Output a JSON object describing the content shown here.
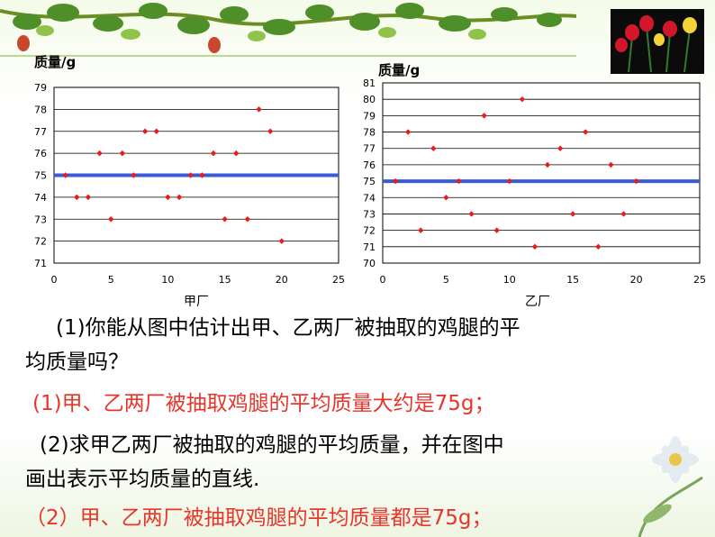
{
  "charts": [
    {
      "ylabel": "质量/g",
      "xlabel": "甲厂",
      "chart_data": {
        "type": "scatter",
        "xlim": [
          0,
          25
        ],
        "ylim": [
          71,
          79
        ],
        "xticks": [
          0,
          5,
          10,
          15,
          20,
          25
        ],
        "yticks": [
          71,
          72,
          73,
          74,
          75,
          76,
          77,
          78,
          79
        ],
        "grid": true,
        "mean_line": 75,
        "points": [
          [
            1,
            75
          ],
          [
            2,
            74
          ],
          [
            3,
            74
          ],
          [
            4,
            76
          ],
          [
            5,
            73
          ],
          [
            6,
            76
          ],
          [
            7,
            75
          ],
          [
            8,
            77
          ],
          [
            9,
            77
          ],
          [
            10,
            74
          ],
          [
            11,
            74
          ],
          [
            12,
            75
          ],
          [
            13,
            75
          ],
          [
            14,
            76
          ],
          [
            15,
            73
          ],
          [
            16,
            76
          ],
          [
            17,
            73
          ],
          [
            18,
            78
          ],
          [
            19,
            77
          ],
          [
            20,
            72
          ]
        ]
      }
    },
    {
      "ylabel": "质量/g",
      "xlabel": "乙厂",
      "chart_data": {
        "type": "scatter",
        "xlim": [
          0,
          25
        ],
        "ylim": [
          70,
          81
        ],
        "xticks": [
          0,
          5,
          10,
          15,
          20,
          25
        ],
        "yticks": [
          70,
          71,
          72,
          73,
          74,
          75,
          76,
          77,
          78,
          79,
          80,
          81
        ],
        "grid": true,
        "mean_line": 75,
        "points": [
          [
            1,
            75
          ],
          [
            2,
            78
          ],
          [
            3,
            72
          ],
          [
            4,
            77
          ],
          [
            5,
            74
          ],
          [
            6,
            75
          ],
          [
            7,
            73
          ],
          [
            8,
            79
          ],
          [
            9,
            72
          ],
          [
            10,
            75
          ],
          [
            11,
            80
          ],
          [
            12,
            71
          ],
          [
            13,
            76
          ],
          [
            14,
            77
          ],
          [
            15,
            73
          ],
          [
            16,
            78
          ],
          [
            17,
            71
          ],
          [
            18,
            76
          ],
          [
            19,
            73
          ],
          [
            20,
            75
          ]
        ]
      }
    }
  ],
  "colors": {
    "point": "#e81c1c",
    "mean_line": "#3a5bd9",
    "grid": "#000000"
  },
  "text": {
    "q1": "(1)你能从图中估计出甲、乙两厂被抽取的鸡腿的平",
    "q1b": "均质量吗？",
    "a1": "(1)甲、乙两厂被抽取鸡腿的平均质量大约是75g；",
    "q2": "(2)求甲乙两厂被抽取的鸡腿的平均质量，并在图中",
    "q2b": "画出表示平均质量的直线.",
    "a2": "（2）甲、乙两厂被抽取鸡腿的平均质量都是75g；"
  }
}
